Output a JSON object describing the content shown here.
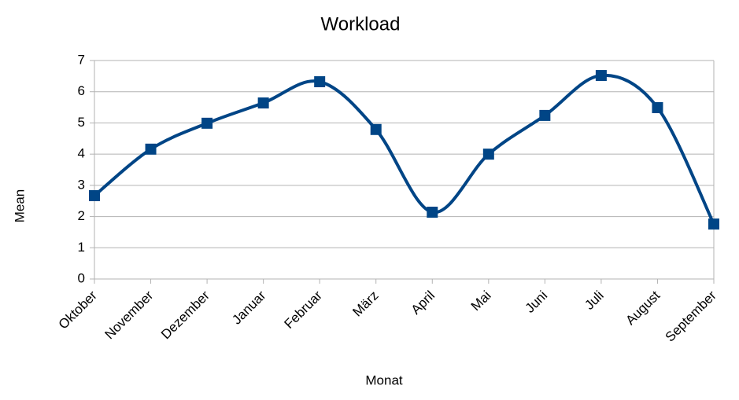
{
  "chart_data": {
    "type": "line",
    "title": "Workload",
    "x_label": "Monat",
    "y_label": "Mean",
    "categories": [
      "Oktober",
      "November",
      "Dezember",
      "Januar",
      "Februar",
      "März",
      "April",
      "Mai",
      "Juni",
      "Juli",
      "August",
      "September"
    ],
    "series": [
      {
        "name": "Mean",
        "color": "#004586",
        "values": [
          2.67,
          4.16,
          4.99,
          5.64,
          6.32,
          4.79,
          2.14,
          4.0,
          5.24,
          6.52,
          5.49,
          1.76
        ]
      }
    ],
    "ylim": [
      0,
      7
    ],
    "yticks": [
      0,
      1,
      2,
      3,
      4,
      5,
      6,
      7
    ],
    "grid": true,
    "smooth": true,
    "marker": "square"
  }
}
